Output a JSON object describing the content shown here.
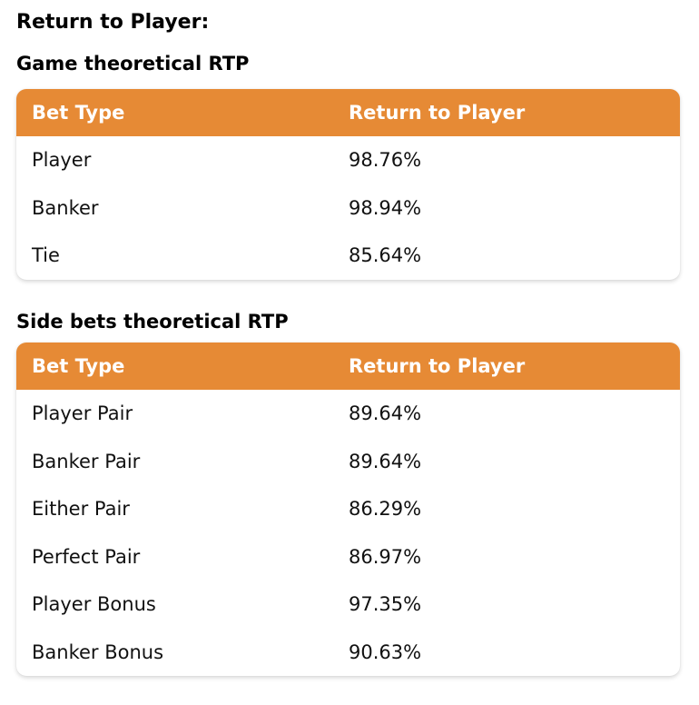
{
  "page_title": "Return to Player:",
  "game_section": {
    "title": "Game theoretical RTP",
    "headers": {
      "bet_type": "Bet Type",
      "rtp": "Return to Player"
    },
    "rows": [
      {
        "bet_type": "Player",
        "rtp": "98.76%"
      },
      {
        "bet_type": "Banker",
        "rtp": "98.94%"
      },
      {
        "bet_type": "Tie",
        "rtp": "85.64%"
      }
    ]
  },
  "side_section": {
    "title": "Side bets theoretical RTP",
    "headers": {
      "bet_type": "Bet Type",
      "rtp": "Return to Player"
    },
    "rows": [
      {
        "bet_type": "Player Pair",
        "rtp": "89.64%"
      },
      {
        "bet_type": "Banker Pair",
        "rtp": "89.64%"
      },
      {
        "bet_type": "Either Pair",
        "rtp": "86.29%"
      },
      {
        "bet_type": "Perfect Pair",
        "rtp": "86.97%"
      },
      {
        "bet_type": "Player Bonus",
        "rtp": "97.35%"
      },
      {
        "bet_type": "Banker Bonus",
        "rtp": "90.63%"
      }
    ]
  },
  "colors": {
    "header_background": "#e68a35",
    "header_text": "#ffffff",
    "body_text": "#111111"
  }
}
